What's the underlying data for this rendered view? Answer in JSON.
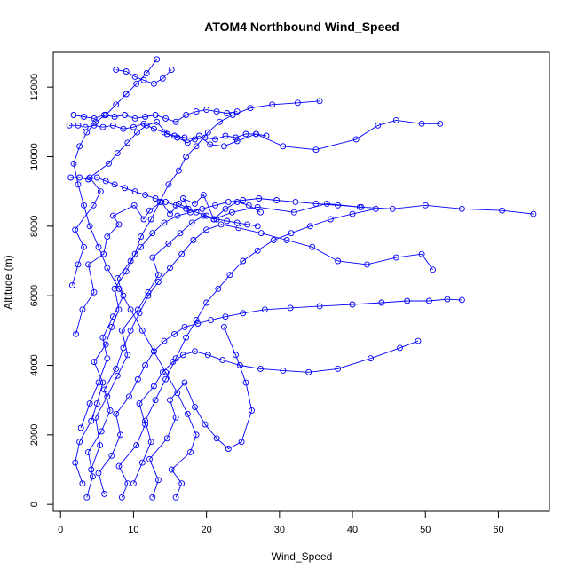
{
  "chart_data": {
    "type": "line",
    "title": "ATOM4 Northbound Wind_Speed",
    "xlabel": "Wind_Speed",
    "ylabel": "Altitude (m)",
    "xlim": [
      -1,
      67
    ],
    "ylim": [
      -200,
      13000
    ],
    "xticks": [
      "0",
      "10",
      "20",
      "30",
      "40",
      "50",
      "60"
    ],
    "yticks": [
      "0",
      "2000",
      "4000",
      "6000",
      "8000",
      "10000",
      "12000"
    ],
    "grid": false,
    "legend": "none",
    "marker": "open-circle",
    "color": "#0000ff",
    "series": [
      {
        "x": [
          2.1,
          3.0,
          4.6,
          3.8,
          5.9,
          6.4,
          8.0,
          7.2,
          10.1,
          11.4,
          12.2,
          13.8,
          15.0,
          16.2,
          17.5,
          16.8,
          18.4,
          19.6,
          21.0,
          23.5,
          27.0,
          32.0,
          36.5,
          41.0,
          45.5,
          50.0,
          55.0,
          60.5,
          64.8
        ],
        "y": [
          4900,
          5600,
          6100,
          6900,
          7200,
          7700,
          8050,
          8300,
          8600,
          8200,
          8450,
          8700,
          8350,
          8650,
          8500,
          8800,
          8650,
          8900,
          8200,
          8400,
          8550,
          8400,
          8650,
          8550,
          8500,
          8600,
          8500,
          8450,
          8350
        ]
      },
      {
        "x": [
          1.6,
          2.4,
          3.2,
          2.0,
          4.5,
          5.5,
          4.0,
          6.6,
          7.8,
          9.2,
          10.5,
          11.8,
          13.2,
          14.6,
          16.0,
          17.4,
          19.0,
          20.5,
          22.4,
          24.2,
          26.8,
          30.5,
          35.0,
          40.5,
          43.5,
          46.0,
          49.5,
          52.0
        ],
        "y": [
          6300,
          6900,
          7400,
          7900,
          8600,
          9000,
          9400,
          9800,
          10100,
          10400,
          10700,
          10900,
          11000,
          10650,
          10550,
          10400,
          10600,
          10350,
          10300,
          10450,
          10650,
          10300,
          10200,
          10500,
          10900,
          11050,
          10950,
          10950
        ]
      },
      {
        "x": [
          3.0,
          2.0,
          2.6,
          4.2,
          5.0,
          5.8,
          4.6,
          6.2,
          7.0,
          8.0,
          7.4,
          9.0,
          10.2,
          11.0,
          12.4,
          13.6,
          14.8,
          16.2,
          17.2,
          18.6,
          20.2,
          21.8,
          23.6,
          26.0,
          29.0,
          32.5,
          35.5
        ],
        "y": [
          600,
          1200,
          1800,
          2400,
          2900,
          3500,
          4100,
          4600,
          5100,
          5600,
          6200,
          6700,
          7200,
          7700,
          8200,
          8700,
          9200,
          9600,
          10000,
          10300,
          10700,
          11000,
          11200,
          11400,
          11500,
          11550,
          11600
        ]
      },
      {
        "x": [
          3.6,
          4.4,
          3.8,
          5.6,
          6.8,
          6.0,
          7.6,
          8.6,
          9.6,
          10.8,
          12.0,
          13.4,
          15.0,
          16.6,
          18.2,
          20.0,
          22.0,
          24.4,
          27.5,
          31.0,
          34.5,
          38.0,
          42.0,
          46.0,
          49.5,
          51.0
        ],
        "y": [
          200,
          800,
          1500,
          2100,
          2700,
          3300,
          3900,
          4500,
          5000,
          5500,
          6000,
          6400,
          6800,
          7200,
          7600,
          7900,
          8050,
          7950,
          7800,
          7600,
          7400,
          7000,
          6900,
          7100,
          7200,
          6750
        ]
      },
      {
        "x": [
          6.0,
          5.2,
          7.0,
          8.2,
          7.6,
          9.4,
          10.6,
          11.6,
          12.8,
          14.2,
          15.6,
          17.0,
          18.8,
          20.6,
          22.6,
          25.0,
          28.0,
          31.5,
          35.5,
          40.0,
          44.0,
          47.5,
          50.5,
          53.0,
          55.0
        ],
        "y": [
          300,
          900,
          1400,
          2000,
          2600,
          3100,
          3600,
          4000,
          4400,
          4700,
          4900,
          5100,
          5200,
          5300,
          5400,
          5500,
          5600,
          5650,
          5700,
          5750,
          5800,
          5850,
          5850,
          5900,
          5880
        ]
      },
      {
        "x": [
          8.4,
          9.2,
          8.0,
          10.4,
          11.6,
          10.8,
          12.8,
          14.0,
          15.4,
          16.8,
          18.4,
          20.2,
          22.2,
          24.6,
          27.4,
          30.5,
          34.0,
          38.0,
          42.5,
          46.5,
          49.0
        ],
        "y": [
          200,
          600,
          1100,
          1700,
          2300,
          2900,
          3400,
          3800,
          4100,
          4300,
          4400,
          4300,
          4150,
          4000,
          3900,
          3850,
          3800,
          3900,
          4200,
          4500,
          4700
        ]
      },
      {
        "x": [
          12.6,
          13.4,
          12.2,
          14.6,
          15.8,
          15.0,
          17.0,
          18.4,
          19.8,
          21.4,
          23.0,
          24.8,
          26.2,
          25.4,
          24.0,
          22.4
        ],
        "y": [
          200,
          700,
          1300,
          1900,
          2500,
          3000,
          3500,
          2800,
          2300,
          1900,
          1600,
          1800,
          2700,
          3500,
          4300,
          5100
        ]
      },
      {
        "x": [
          15.8,
          16.6,
          15.2,
          17.8,
          18.6,
          17.4,
          16.0,
          14.4,
          12.8,
          11.2,
          9.6,
          8.0,
          6.4,
          5.2,
          4.0,
          3.2,
          2.4,
          1.8,
          2.6,
          3.6,
          4.8,
          6.2,
          7.6,
          9.0,
          10.4,
          11.8,
          13.2
        ],
        "y": [
          200,
          600,
          1000,
          1500,
          2000,
          2600,
          3200,
          3800,
          4400,
          5000,
          5600,
          6200,
          6800,
          7400,
          8000,
          8600,
          9200,
          9800,
          10300,
          10700,
          11000,
          11200,
          11500,
          11800,
          12100,
          12400,
          12800
        ]
      },
      {
        "x": [
          1.2,
          2.4,
          3.4,
          4.6,
          5.8,
          7.2,
          8.6,
          10.0,
          11.4,
          12.8,
          14.2,
          15.6,
          17.0,
          18.4,
          19.8,
          21.2,
          22.6,
          24.0,
          25.4,
          26.8,
          28.2
        ],
        "y": [
          10900,
          10900,
          10850,
          10900,
          10850,
          10900,
          10800,
          10850,
          10950,
          10800,
          10700,
          10600,
          10550,
          10500,
          10550,
          10500,
          10600,
          10550,
          10650,
          10650,
          10600
        ]
      },
      {
        "x": [
          1.4,
          2.6,
          3.8,
          5.0,
          6.2,
          7.4,
          8.8,
          10.2,
          11.6,
          13.0,
          14.4,
          15.8,
          17.2,
          18.6,
          20.0,
          21.4,
          22.8,
          24.2,
          25.6,
          27.0
        ],
        "y": [
          9400,
          9400,
          9350,
          9400,
          9300,
          9200,
          9100,
          9000,
          8900,
          8800,
          8700,
          8600,
          8500,
          8400,
          8300,
          8200,
          8150,
          8100,
          8050,
          8000
        ]
      },
      {
        "x": [
          1.8,
          3.2,
          4.6,
          6.0,
          7.4,
          8.8,
          10.2,
          11.6,
          13.0,
          14.4,
          15.8,
          17.2,
          18.6,
          20.0,
          21.4,
          22.8,
          24.2
        ],
        "y": [
          11200,
          11150,
          11100,
          11200,
          11150,
          11200,
          11100,
          11150,
          11200,
          11100,
          11000,
          11200,
          11300,
          11350,
          11300,
          11250,
          11300
        ]
      },
      {
        "x": [
          7.6,
          9.0,
          10.2,
          11.4,
          12.8,
          14.0,
          15.2
        ],
        "y": [
          12500,
          12450,
          12300,
          12200,
          12100,
          12250,
          12500
        ]
      },
      {
        "x": [
          4.2,
          5.4,
          4.8,
          6.4,
          7.8,
          9.2,
          8.4,
          10.6,
          12.0,
          13.4,
          12.6,
          14.8,
          16.4,
          18.0,
          19.6,
          21.0,
          22.6,
          24.2,
          25.8,
          27.4
        ],
        "y": [
          1000,
          1700,
          2500,
          3100,
          3700,
          4300,
          5000,
          5600,
          6100,
          6600,
          7100,
          7500,
          7800,
          8100,
          8300,
          8200,
          8500,
          8700,
          8600,
          8400
        ]
      },
      {
        "x": [
          2.8,
          4.0,
          5.2,
          6.4,
          5.8,
          7.2,
          8.6,
          7.8,
          9.6,
          11.0,
          12.6,
          14.2,
          16.0,
          17.8,
          19.4,
          21.2,
          23.0,
          25.0,
          27.2,
          29.6,
          32.2,
          35.0,
          38.0,
          41.2
        ],
        "y": [
          2200,
          2900,
          3500,
          4200,
          4800,
          5400,
          6000,
          6500,
          7000,
          7400,
          7800,
          8100,
          8300,
          8400,
          8500,
          8600,
          8700,
          8750,
          8800,
          8750,
          8700,
          8650,
          8600,
          8550
        ]
      },
      {
        "x": [
          10.0,
          11.2,
          12.4,
          11.6,
          13.0,
          14.4,
          15.8,
          17.2,
          18.6,
          20.0,
          21.6,
          23.2,
          25.0,
          27.0,
          29.2,
          31.6,
          34.2,
          37.0,
          40.0,
          43.2
        ],
        "y": [
          600,
          1200,
          1800,
          2400,
          3000,
          3600,
          4200,
          4800,
          5300,
          5800,
          6200,
          6600,
          7000,
          7300,
          7600,
          7800,
          8000,
          8200,
          8350,
          8500
        ]
      }
    ]
  }
}
